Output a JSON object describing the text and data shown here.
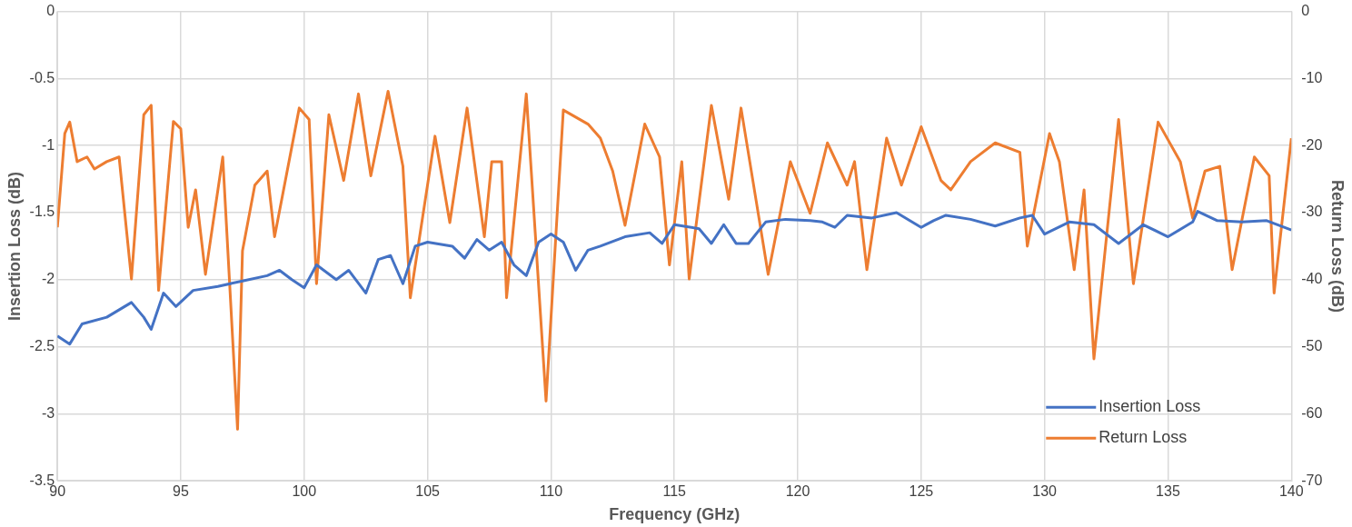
{
  "chart_data": {
    "type": "line",
    "xlabel": "Frequency (GHz)",
    "ylabel": "Insertion Loss (dB)",
    "y2label": "Return Loss (dB)",
    "xlim": [
      90,
      140
    ],
    "xticks": [
      90,
      95,
      100,
      105,
      110,
      115,
      120,
      125,
      130,
      135,
      140
    ],
    "ylim": [
      -3.5,
      0
    ],
    "yticks": [
      -3.5,
      -3,
      -2.5,
      -2,
      -1.5,
      -1,
      -0.5,
      0
    ],
    "y2lim": [
      -70,
      0
    ],
    "y2ticks": [
      -70,
      -60,
      -50,
      -40,
      -30,
      -20,
      -10,
      0
    ],
    "grid": true,
    "legend": "bottom right",
    "marker": "none",
    "line_style": "solid",
    "series": [
      {
        "name": "Insertion Loss",
        "color": "#4472c4",
        "x": [
          90,
          90.5,
          91,
          92,
          93,
          93.5,
          93.8,
          94.3,
          94.8,
          95.5,
          96.5,
          97.5,
          98.5,
          99,
          99.5,
          100,
          100.5,
          101.3,
          101.8,
          102.5,
          103,
          103.5,
          104,
          104.5,
          105,
          106,
          106.5,
          107,
          107.5,
          108,
          108.5,
          109,
          109.5,
          110,
          110.5,
          111,
          111.5,
          112,
          113,
          114,
          114.5,
          115,
          116,
          116.5,
          117,
          117.5,
          118,
          118.7,
          119.5,
          120.5,
          121,
          121.5,
          122,
          123,
          124,
          125,
          125.5,
          126,
          127,
          128,
          129,
          129.5,
          130,
          131,
          132,
          133,
          134,
          135,
          136,
          136.2,
          137,
          138,
          139,
          140
        ],
        "values": [
          -2.42,
          -2.48,
          -2.33,
          -2.28,
          -2.17,
          -2.28,
          -2.37,
          -2.1,
          -2.2,
          -2.08,
          -2.05,
          -2.01,
          -1.97,
          -1.93,
          -2.0,
          -2.06,
          -1.89,
          -2.0,
          -1.93,
          -2.1,
          -1.85,
          -1.82,
          -2.03,
          -1.75,
          -1.72,
          -1.75,
          -1.84,
          -1.7,
          -1.78,
          -1.72,
          -1.89,
          -1.97,
          -1.72,
          -1.66,
          -1.72,
          -1.93,
          -1.78,
          -1.75,
          -1.68,
          -1.65,
          -1.73,
          -1.59,
          -1.62,
          -1.73,
          -1.59,
          -1.73,
          -1.73,
          -1.57,
          -1.55,
          -1.56,
          -1.57,
          -1.61,
          -1.52,
          -1.54,
          -1.5,
          -1.61,
          -1.56,
          -1.52,
          -1.55,
          -1.6,
          -1.54,
          -1.52,
          -1.66,
          -1.57,
          -1.59,
          -1.73,
          -1.59,
          -1.68,
          -1.57,
          -1.49,
          -1.56,
          -1.57,
          -1.56,
          -1.63
        ]
      },
      {
        "name": "Return Loss",
        "color": "#ed7d31",
        "axis": "y2",
        "x": [
          90,
          90.3,
          90.5,
          90.8,
          91.2,
          91.5,
          92,
          92.5,
          93,
          93.5,
          93.8,
          94.1,
          94.7,
          95,
          95.3,
          95.6,
          96,
          96.7,
          97.3,
          97.5,
          98,
          98.5,
          98.8,
          99.8,
          100.2,
          100.5,
          101,
          101.6,
          102.2,
          102.7,
          103.4,
          104,
          104.3,
          105.3,
          105.9,
          106.6,
          107.3,
          107.6,
          108,
          108.2,
          109,
          109.8,
          110.5,
          111.5,
          112,
          112.5,
          113,
          113.8,
          114.4,
          114.8,
          115.3,
          115.6,
          116.5,
          117.2,
          117.7,
          118.8,
          119.7,
          120.5,
          121.2,
          122,
          122.3,
          122.8,
          123.6,
          124.2,
          125,
          125.8,
          126.2,
          127,
          128,
          129,
          129.3,
          130.2,
          130.6,
          131.2,
          131.6,
          132,
          133,
          133.6,
          134.6,
          135.5,
          136,
          136.5,
          137.1,
          137.6,
          138.5,
          139.1,
          139.3,
          140
        ],
        "values": [
          -32.2,
          -18.2,
          -16.5,
          -22.4,
          -21.7,
          -23.5,
          -22.4,
          -21.7,
          -39.9,
          -15.4,
          -14,
          -41.6,
          -16.4,
          -17.5,
          -32.2,
          -26.6,
          -39.2,
          -21.7,
          -62.3,
          -35.7,
          -25.9,
          -23.8,
          -33.6,
          -14.4,
          -16.1,
          -40.6,
          -15.4,
          -25.2,
          -12.3,
          -24.5,
          -11.9,
          -23.1,
          -42.7,
          -18.6,
          -31.5,
          -14.4,
          -33.6,
          -22.4,
          -22.4,
          -42.7,
          -12.3,
          -58.1,
          -14.7,
          -16.8,
          -18.9,
          -23.8,
          -31.9,
          -16.8,
          -21.7,
          -37.8,
          -22.4,
          -39.9,
          -14,
          -28,
          -14.4,
          -39.2,
          -22.4,
          -30.1,
          -19.6,
          -25.9,
          -22.4,
          -38.5,
          -18.9,
          -25.9,
          -17.2,
          -25.2,
          -26.6,
          -22.4,
          -19.6,
          -21,
          -35,
          -18.2,
          -22.4,
          -38.5,
          -26.6,
          -51.8,
          -16.1,
          -40.6,
          -16.5,
          -22.4,
          -30.8,
          -23.8,
          -23.1,
          -38.5,
          -21.7,
          -24.5,
          -42,
          -18.9
        ]
      }
    ]
  }
}
